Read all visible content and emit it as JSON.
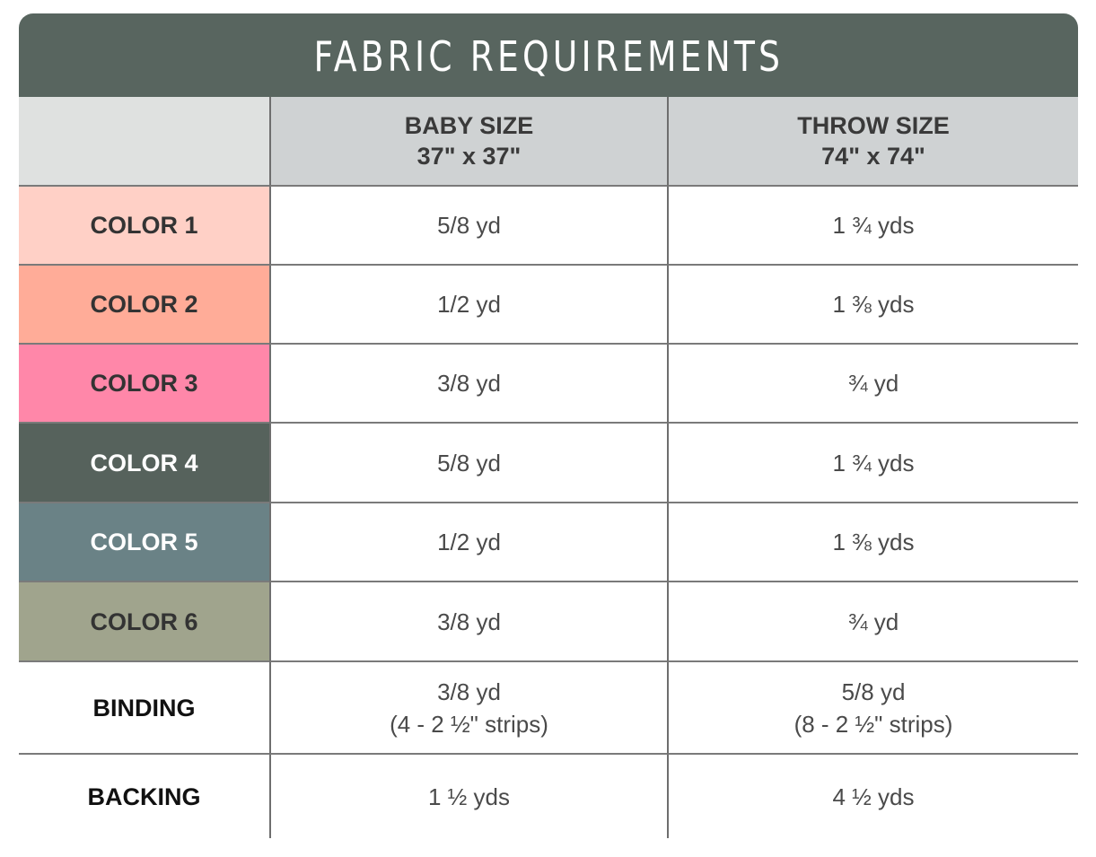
{
  "title": "FABRIC REQUIREMENTS",
  "columns": [
    {
      "name": "BABY SIZE",
      "dims": "37\" x 37\""
    },
    {
      "name": "THROW SIZE",
      "dims": "74\" x 74\""
    }
  ],
  "rows": [
    {
      "label": "COLOR 1",
      "bg": "#ffd0c6",
      "fg": "#333333",
      "baby": [
        "5/8 yd"
      ],
      "throw": [
        "1 ¾ yds"
      ]
    },
    {
      "label": "COLOR 2",
      "bg": "#ffac98",
      "fg": "#333333",
      "baby": [
        "1/2 yd"
      ],
      "throw": [
        "1 ⅜ yds"
      ]
    },
    {
      "label": "COLOR 3",
      "bg": "#ff87a9",
      "fg": "#333333",
      "baby": [
        "3/8 yd"
      ],
      "throw": [
        "¾ yd"
      ]
    },
    {
      "label": "COLOR 4",
      "bg": "#56625c",
      "fg": "#ffffff",
      "baby": [
        "5/8 yd"
      ],
      "throw": [
        "1 ¾ yds"
      ]
    },
    {
      "label": "COLOR 5",
      "bg": "#6a8286",
      "fg": "#ffffff",
      "baby": [
        "1/2 yd"
      ],
      "throw": [
        "1 ⅜ yds"
      ]
    },
    {
      "label": "COLOR 6",
      "bg": "#a0a48d",
      "fg": "#333333",
      "baby": [
        "3/8 yd"
      ],
      "throw": [
        "¾ yd"
      ]
    },
    {
      "label": "BINDING",
      "bg": "#ffffff",
      "fg": "#111111",
      "baby": [
        "3/8 yd",
        "(4 - 2 ½\" strips)"
      ],
      "throw": [
        "5/8 yd",
        "(8 - 2 ½\" strips)"
      ]
    },
    {
      "label": "BACKING",
      "bg": "#ffffff",
      "fg": "#111111",
      "baby": [
        "1 ½ yds"
      ],
      "throw": [
        "4 ½ yds"
      ]
    }
  ],
  "colors": {
    "title_bg": "#58655f",
    "header_bg": "#cfd2d3",
    "corner_bg": "#dfe1e0"
  }
}
